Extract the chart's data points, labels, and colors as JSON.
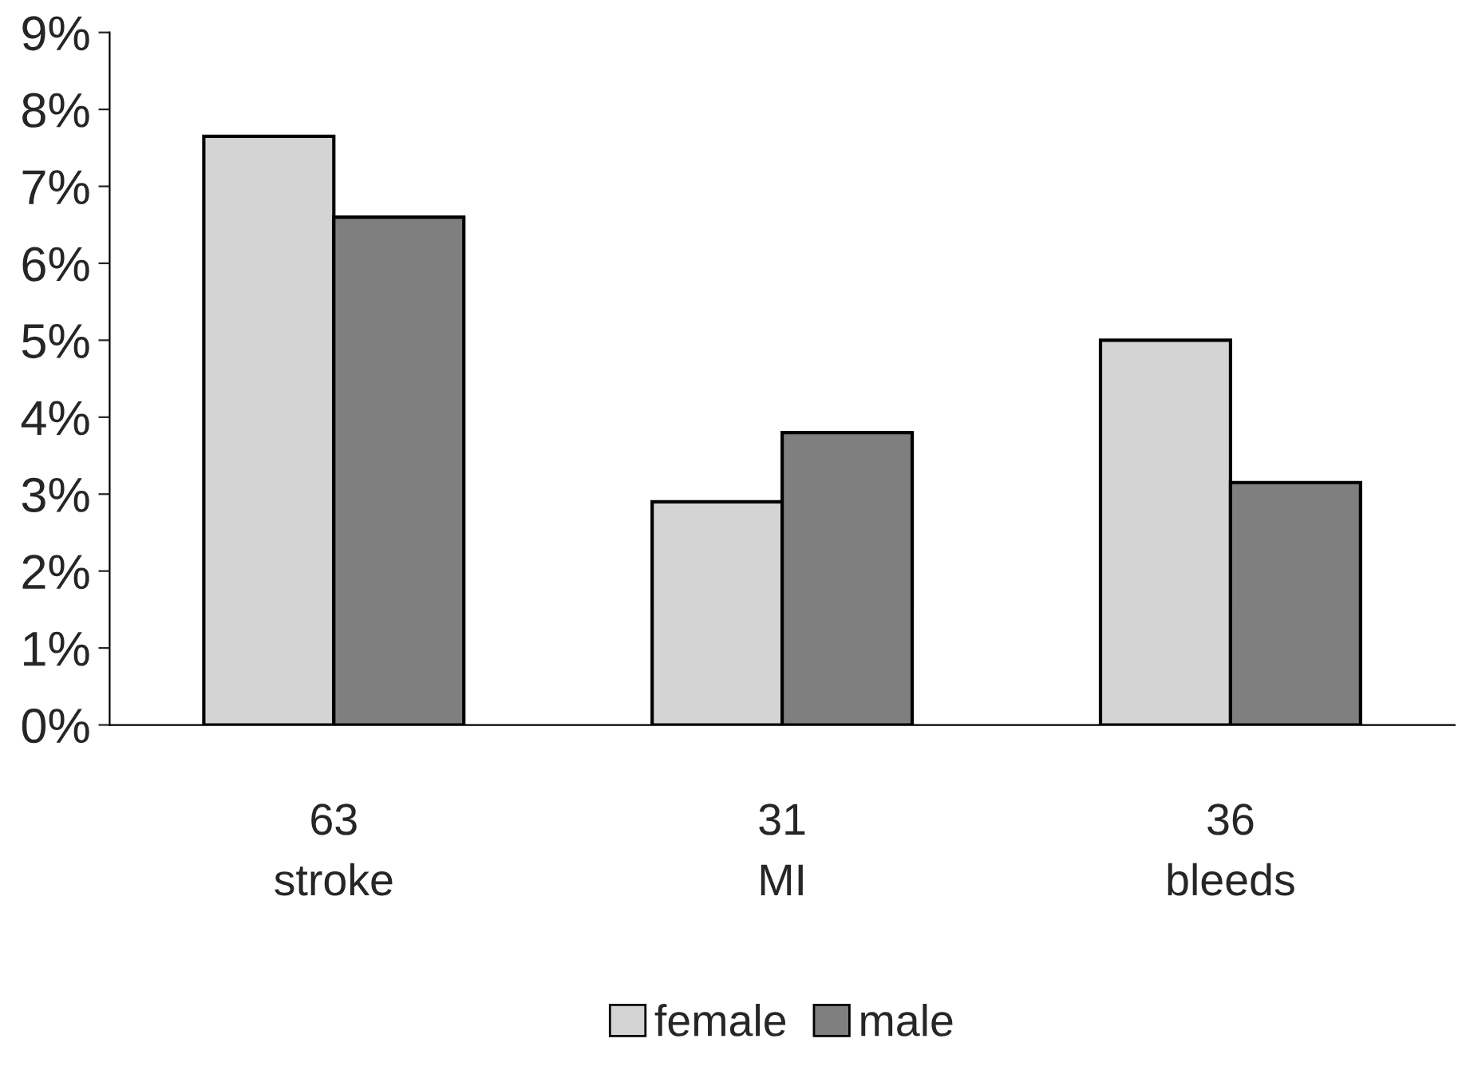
{
  "chart_data": {
    "type": "bar",
    "categories": [
      "63\nstroke",
      "31\nMI",
      "36\nbleeds"
    ],
    "series": [
      {
        "name": "female",
        "color": "#d4d4d4",
        "values": [
          7.65,
          2.9,
          5.0
        ]
      },
      {
        "name": "male",
        "color": "#7f7f7f",
        "values": [
          6.6,
          3.8,
          3.15
        ]
      }
    ],
    "ylim": [
      0,
      9
    ],
    "yticks": [
      {
        "value": 0,
        "label": "0%"
      },
      {
        "value": 1,
        "label": "1%"
      },
      {
        "value": 2,
        "label": "2%"
      },
      {
        "value": 3,
        "label": "3%"
      },
      {
        "value": 4,
        "label": "4%"
      },
      {
        "value": 5,
        "label": "5%"
      },
      {
        "value": 6,
        "label": "6%"
      },
      {
        "value": 7,
        "label": "7%"
      },
      {
        "value": 8,
        "label": "8%"
      },
      {
        "value": 9,
        "label": "9%"
      }
    ],
    "grid": false,
    "legend": "bottom"
  }
}
